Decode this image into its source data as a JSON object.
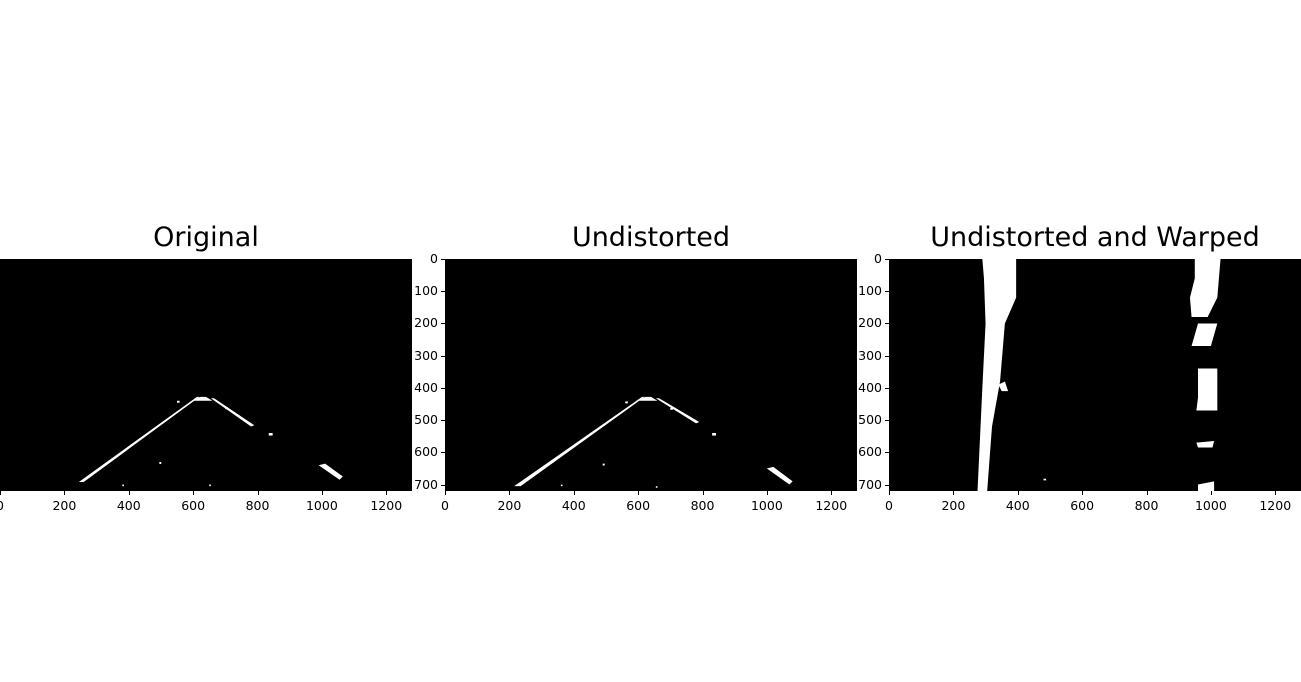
{
  "panels": [
    {
      "title": "Original"
    },
    {
      "title": "Undistorted"
    },
    {
      "title": "Undistorted and Warped"
    }
  ],
  "axes": {
    "x_ticks": [
      "0",
      "200",
      "400",
      "600",
      "800",
      "1000",
      "1200"
    ],
    "y_ticks": [
      "0",
      "100",
      "200",
      "300",
      "400",
      "500",
      "600",
      "700"
    ],
    "y_ticks_visible_partial": [
      "0",
      "100",
      "200",
      "300",
      "400",
      "500",
      "600",
      "700"
    ],
    "x_range": [
      0,
      1280
    ],
    "y_range": [
      0,
      720
    ]
  },
  "colors": {
    "background": "#ffffff",
    "image_bg": "#000000",
    "mark": "#ffffff"
  }
}
